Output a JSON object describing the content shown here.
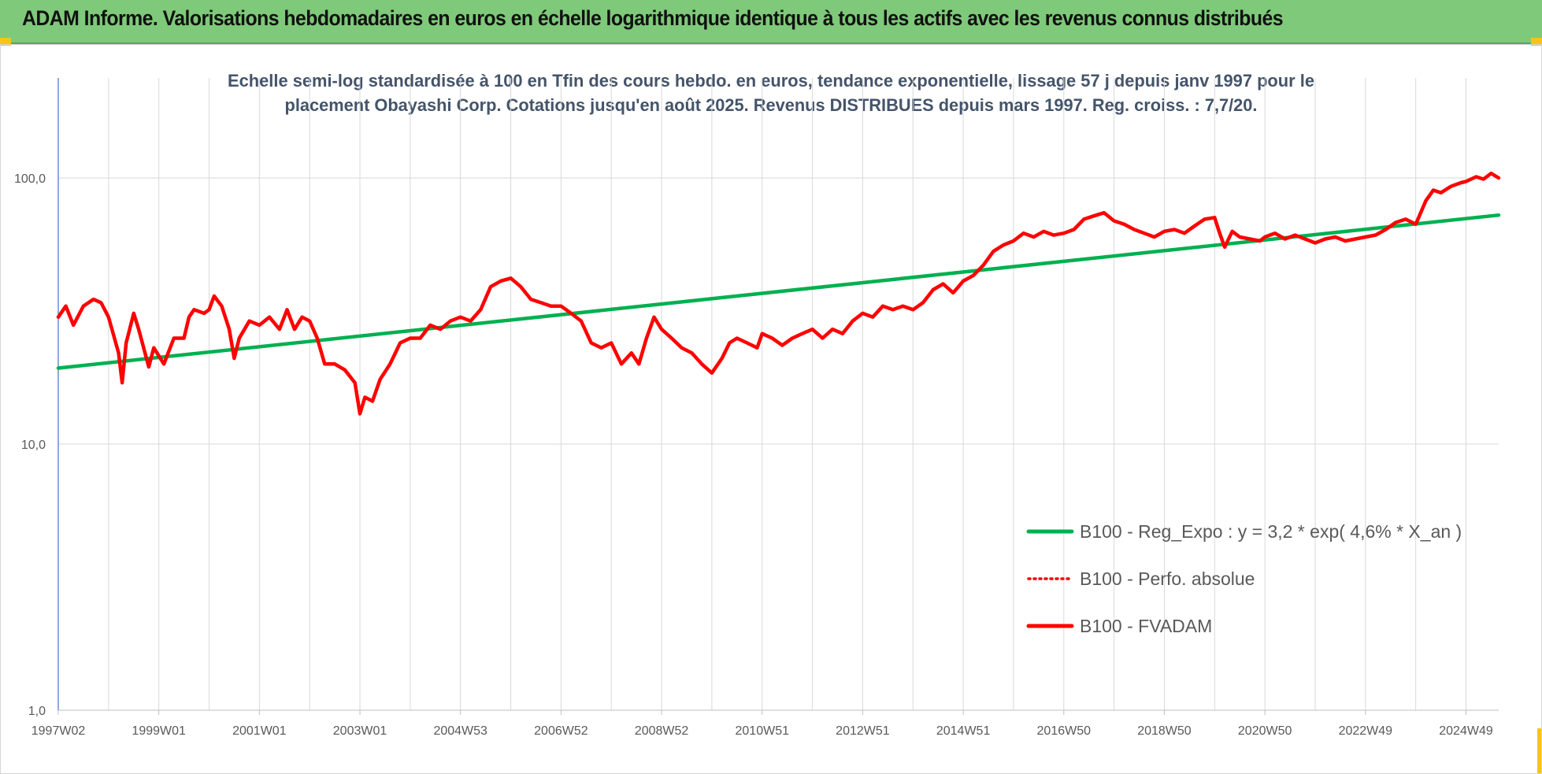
{
  "header": {
    "title": "ADAM Informe. Valorisations hebdomadaires en euros en échelle logarithmique identique à tous les actifs avec les revenus connus distribués"
  },
  "colors": {
    "banner": "#7fc97a",
    "trend": "#00b050",
    "fvadam": "#ff0000",
    "perfo": "#ff0000",
    "grid": "#d9d9d9",
    "subtitle": "#44546a"
  },
  "chart_data": {
    "type": "line",
    "subtitle": [
      "Echelle semi-log standardisée à 100 en Tfin des cours hebdo. en euros, tendance exponentielle, lissage 57 j depuis janv 1997 pour le",
      "placement Obayashi Corp. Cotations jusqu'en août 2025. Revenus DISTRIBUES depuis mars 1997. Reg. croiss. : 7,7/20."
    ],
    "y_scale": "log",
    "ylim": [
      1,
      200
    ],
    "y_ticks": [
      {
        "value": 1,
        "label": "1,0"
      },
      {
        "value": 10,
        "label": "10,0"
      },
      {
        "value": 100,
        "label": "100,0"
      }
    ],
    "xlim": [
      1997.0,
      2025.65
    ],
    "x_ticks": [
      {
        "pos": 1997.0,
        "label": "1997W02"
      },
      {
        "pos": 1999.0,
        "label": "1999W01"
      },
      {
        "pos": 2001.0,
        "label": "2001W01"
      },
      {
        "pos": 2003.0,
        "label": "2003W01"
      },
      {
        "pos": 2005.0,
        "label": "2004W53"
      },
      {
        "pos": 2007.0,
        "label": "2006W52"
      },
      {
        "pos": 2009.0,
        "label": "2008W52"
      },
      {
        "pos": 2011.0,
        "label": "2010W51"
      },
      {
        "pos": 2013.0,
        "label": "2012W51"
      },
      {
        "pos": 2015.0,
        "label": "2014W51"
      },
      {
        "pos": 2017.0,
        "label": "2016W50"
      },
      {
        "pos": 2019.0,
        "label": "2018W50"
      },
      {
        "pos": 2021.0,
        "label": "2020W50"
      },
      {
        "pos": 2023.0,
        "label": "2022W49"
      },
      {
        "pos": 2025.0,
        "label": "2024W49"
      }
    ],
    "minor_grid_step": 1,
    "grid": true,
    "legend_position": "lower-right",
    "series": [
      {
        "name": "B100 - Reg_Expo : y = 3,2 * exp( 4,6% *  X_an )",
        "color": "#00b050",
        "style": "solid",
        "points": [
          [
            1997.0,
            19.3
          ],
          [
            2025.65,
            72.5
          ]
        ]
      },
      {
        "name": "B100 - Perfo. absolue",
        "color": "#ff0000",
        "style": "dotted",
        "points": []
      },
      {
        "name": "B100 - FVADAM",
        "color": "#ff0000",
        "style": "solid",
        "points": [
          [
            1997.0,
            30
          ],
          [
            1997.15,
            33
          ],
          [
            1997.3,
            28
          ],
          [
            1997.5,
            33
          ],
          [
            1997.7,
            35
          ],
          [
            1997.85,
            34
          ],
          [
            1998.0,
            30
          ],
          [
            1998.2,
            22
          ],
          [
            1998.27,
            17
          ],
          [
            1998.35,
            24
          ],
          [
            1998.5,
            31
          ],
          [
            1998.6,
            27
          ],
          [
            1998.8,
            19.5
          ],
          [
            1998.9,
            23
          ],
          [
            1999.1,
            20
          ],
          [
            1999.3,
            25
          ],
          [
            1999.5,
            25
          ],
          [
            1999.6,
            30
          ],
          [
            1999.7,
            32
          ],
          [
            1999.9,
            31
          ],
          [
            2000.0,
            32
          ],
          [
            2000.1,
            36
          ],
          [
            2000.25,
            33
          ],
          [
            2000.4,
            27
          ],
          [
            2000.5,
            21
          ],
          [
            2000.6,
            25
          ],
          [
            2000.8,
            29
          ],
          [
            2001.0,
            28
          ],
          [
            2001.2,
            30
          ],
          [
            2001.4,
            27
          ],
          [
            2001.55,
            32
          ],
          [
            2001.7,
            27
          ],
          [
            2001.85,
            30
          ],
          [
            2002.0,
            29
          ],
          [
            2002.15,
            25
          ],
          [
            2002.3,
            20
          ],
          [
            2002.5,
            20
          ],
          [
            2002.7,
            19
          ],
          [
            2002.9,
            17
          ],
          [
            2003.0,
            13
          ],
          [
            2003.1,
            15
          ],
          [
            2003.25,
            14.5
          ],
          [
            2003.4,
            17.5
          ],
          [
            2003.6,
            20
          ],
          [
            2003.8,
            24
          ],
          [
            2004.0,
            25
          ],
          [
            2004.2,
            25
          ],
          [
            2004.4,
            28
          ],
          [
            2004.6,
            27
          ],
          [
            2004.8,
            29
          ],
          [
            2005.0,
            30
          ],
          [
            2005.2,
            29
          ],
          [
            2005.4,
            32
          ],
          [
            2005.6,
            39
          ],
          [
            2005.8,
            41
          ],
          [
            2006.0,
            42
          ],
          [
            2006.2,
            39
          ],
          [
            2006.4,
            35
          ],
          [
            2006.6,
            34
          ],
          [
            2006.8,
            33
          ],
          [
            2007.0,
            33
          ],
          [
            2007.2,
            31
          ],
          [
            2007.4,
            29
          ],
          [
            2007.6,
            24
          ],
          [
            2007.8,
            23
          ],
          [
            2008.0,
            24
          ],
          [
            2008.2,
            20
          ],
          [
            2008.4,
            22
          ],
          [
            2008.55,
            20
          ],
          [
            2008.7,
            25
          ],
          [
            2008.85,
            30
          ],
          [
            2009.0,
            27
          ],
          [
            2009.2,
            25
          ],
          [
            2009.4,
            23
          ],
          [
            2009.6,
            22
          ],
          [
            2009.8,
            20
          ],
          [
            2010.0,
            18.5
          ],
          [
            2010.2,
            21
          ],
          [
            2010.35,
            24
          ],
          [
            2010.5,
            25
          ],
          [
            2010.7,
            24
          ],
          [
            2010.9,
            23
          ],
          [
            2011.0,
            26
          ],
          [
            2011.2,
            25
          ],
          [
            2011.4,
            23.5
          ],
          [
            2011.6,
            25
          ],
          [
            2011.8,
            26
          ],
          [
            2012.0,
            27
          ],
          [
            2012.2,
            25
          ],
          [
            2012.4,
            27
          ],
          [
            2012.6,
            26
          ],
          [
            2012.8,
            29
          ],
          [
            2013.0,
            31
          ],
          [
            2013.2,
            30
          ],
          [
            2013.4,
            33
          ],
          [
            2013.6,
            32
          ],
          [
            2013.8,
            33
          ],
          [
            2014.0,
            32
          ],
          [
            2014.2,
            34
          ],
          [
            2014.4,
            38
          ],
          [
            2014.6,
            40
          ],
          [
            2014.8,
            37
          ],
          [
            2015.0,
            41
          ],
          [
            2015.2,
            43
          ],
          [
            2015.4,
            47
          ],
          [
            2015.6,
            53
          ],
          [
            2015.8,
            56
          ],
          [
            2016.0,
            58
          ],
          [
            2016.2,
            62
          ],
          [
            2016.4,
            60
          ],
          [
            2016.6,
            63
          ],
          [
            2016.8,
            61
          ],
          [
            2017.0,
            62
          ],
          [
            2017.2,
            64
          ],
          [
            2017.4,
            70
          ],
          [
            2017.6,
            72
          ],
          [
            2017.8,
            74
          ],
          [
            2018.0,
            69
          ],
          [
            2018.2,
            67
          ],
          [
            2018.4,
            64
          ],
          [
            2018.6,
            62
          ],
          [
            2018.8,
            60
          ],
          [
            2019.0,
            63
          ],
          [
            2019.2,
            64
          ],
          [
            2019.4,
            62
          ],
          [
            2019.6,
            66
          ],
          [
            2019.8,
            70
          ],
          [
            2020.0,
            71
          ],
          [
            2020.1,
            62
          ],
          [
            2020.2,
            55
          ],
          [
            2020.35,
            63
          ],
          [
            2020.5,
            60
          ],
          [
            2020.7,
            59
          ],
          [
            2020.9,
            58
          ],
          [
            2021.0,
            60
          ],
          [
            2021.2,
            62
          ],
          [
            2021.4,
            59
          ],
          [
            2021.6,
            61
          ],
          [
            2021.8,
            59
          ],
          [
            2022.0,
            57
          ],
          [
            2022.2,
            59
          ],
          [
            2022.4,
            60
          ],
          [
            2022.6,
            58
          ],
          [
            2022.8,
            59
          ],
          [
            2023.0,
            60
          ],
          [
            2023.2,
            61
          ],
          [
            2023.4,
            64
          ],
          [
            2023.6,
            68
          ],
          [
            2023.8,
            70
          ],
          [
            2024.0,
            67
          ],
          [
            2024.1,
            74
          ],
          [
            2024.2,
            82
          ],
          [
            2024.35,
            90
          ],
          [
            2024.5,
            88
          ],
          [
            2024.7,
            93
          ],
          [
            2024.9,
            96
          ],
          [
            2025.0,
            97
          ],
          [
            2025.2,
            101
          ],
          [
            2025.35,
            99
          ],
          [
            2025.5,
            104
          ],
          [
            2025.65,
            100
          ]
        ]
      }
    ]
  }
}
